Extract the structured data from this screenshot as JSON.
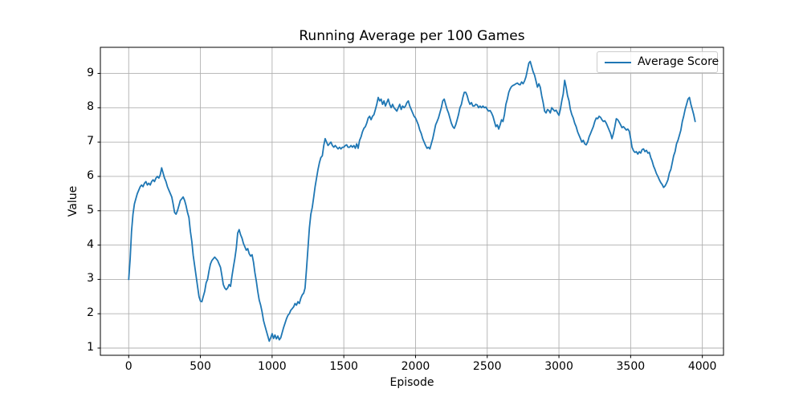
{
  "figure": {
    "background": "#ffffff",
    "axes_edge_color": "#000000"
  },
  "chart_data": {
    "type": "line",
    "title": "Running Average per 100 Games",
    "xlabel": "Episode",
    "ylabel": "Value",
    "legend": {
      "label": "Average Score",
      "position": "upper right"
    },
    "grid": true,
    "grid_color": "#b0b0b0",
    "x_ticks": [
      0,
      500,
      1000,
      1500,
      2000,
      2500,
      3000,
      3500,
      4000
    ],
    "y_ticks": [
      1,
      2,
      3,
      4,
      5,
      6,
      7,
      8,
      9
    ],
    "xlim": [
      -197.5,
      4147.5
    ],
    "ylim": [
      0.79,
      9.76
    ],
    "series": [
      {
        "name": "Average Score",
        "color": "#1f77b4",
        "x_start": 0,
        "x_step": 10,
        "values": [
          3.0,
          3.6,
          4.4,
          4.9,
          5.2,
          5.35,
          5.5,
          5.6,
          5.7,
          5.75,
          5.7,
          5.8,
          5.85,
          5.75,
          5.8,
          5.75,
          5.85,
          5.9,
          5.85,
          5.95,
          6.0,
          5.95,
          6.05,
          6.25,
          6.1,
          5.95,
          5.85,
          5.7,
          5.6,
          5.5,
          5.4,
          5.2,
          4.95,
          4.9,
          5.0,
          5.15,
          5.3,
          5.35,
          5.4,
          5.3,
          5.15,
          4.95,
          4.8,
          4.4,
          4.1,
          3.7,
          3.4,
          3.1,
          2.8,
          2.5,
          2.37,
          2.35,
          2.5,
          2.65,
          2.9,
          3.0,
          3.25,
          3.45,
          3.55,
          3.6,
          3.65,
          3.6,
          3.55,
          3.45,
          3.35,
          3.1,
          2.85,
          2.75,
          2.7,
          2.75,
          2.85,
          2.8,
          3.1,
          3.35,
          3.6,
          3.9,
          4.35,
          4.45,
          4.3,
          4.2,
          4.05,
          3.95,
          3.85,
          3.9,
          3.75,
          3.68,
          3.72,
          3.5,
          3.2,
          2.95,
          2.65,
          2.4,
          2.25,
          2.05,
          1.8,
          1.65,
          1.5,
          1.35,
          1.2,
          1.3,
          1.42,
          1.28,
          1.38,
          1.27,
          1.35,
          1.24,
          1.3,
          1.45,
          1.6,
          1.72,
          1.85,
          1.95,
          2.0,
          2.1,
          2.15,
          2.2,
          2.3,
          2.25,
          2.35,
          2.3,
          2.45,
          2.55,
          2.6,
          2.75,
          3.3,
          3.9,
          4.5,
          4.9,
          5.1,
          5.4,
          5.7,
          5.95,
          6.2,
          6.4,
          6.55,
          6.6,
          6.9,
          7.1,
          7.0,
          6.9,
          6.95,
          7.0,
          6.9,
          6.85,
          6.9,
          6.85,
          6.8,
          6.85,
          6.8,
          6.85,
          6.85,
          6.9,
          6.92,
          6.85,
          6.85,
          6.9,
          6.85,
          6.9,
          6.82,
          6.95,
          6.82,
          7.05,
          7.15,
          7.3,
          7.4,
          7.45,
          7.55,
          7.7,
          7.75,
          7.65,
          7.75,
          7.8,
          7.95,
          8.1,
          8.3,
          8.2,
          8.25,
          8.1,
          8.2,
          8.05,
          8.15,
          8.25,
          8.1,
          8.0,
          8.1,
          8.0,
          7.95,
          7.9,
          8.0,
          8.1,
          7.95,
          8.05,
          8.0,
          8.05,
          8.15,
          8.2,
          8.05,
          7.95,
          7.85,
          7.75,
          7.7,
          7.6,
          7.5,
          7.35,
          7.25,
          7.1,
          7.0,
          6.9,
          6.82,
          6.85,
          6.8,
          6.95,
          7.1,
          7.3,
          7.5,
          7.6,
          7.7,
          7.85,
          8.0,
          8.2,
          8.25,
          8.1,
          7.95,
          7.85,
          7.7,
          7.55,
          7.45,
          7.4,
          7.5,
          7.65,
          7.8,
          8.0,
          8.1,
          8.3,
          8.45,
          8.45,
          8.35,
          8.2,
          8.1,
          8.15,
          8.05,
          8.05,
          8.1,
          8.08,
          8.0,
          8.05,
          8.0,
          8.05,
          8.0,
          8.02,
          7.95,
          7.9,
          7.92,
          7.85,
          7.75,
          7.6,
          7.45,
          7.5,
          7.38,
          7.5,
          7.65,
          7.6,
          7.8,
          8.1,
          8.25,
          8.45,
          8.55,
          8.62,
          8.65,
          8.67,
          8.7,
          8.72,
          8.68,
          8.67,
          8.75,
          8.7,
          8.78,
          8.9,
          9.1,
          9.3,
          9.35,
          9.2,
          9.05,
          8.95,
          8.78,
          8.6,
          8.7,
          8.6,
          8.35,
          8.15,
          7.9,
          7.85,
          7.95,
          7.92,
          7.85,
          8.0,
          7.95,
          7.9,
          7.93,
          7.85,
          7.78,
          7.95,
          8.2,
          8.4,
          8.8,
          8.6,
          8.35,
          8.2,
          7.95,
          7.8,
          7.7,
          7.55,
          7.45,
          7.3,
          7.2,
          7.1,
          7.0,
          7.05,
          6.95,
          6.92,
          7.0,
          7.15,
          7.25,
          7.35,
          7.45,
          7.6,
          7.7,
          7.68,
          7.75,
          7.72,
          7.65,
          7.6,
          7.62,
          7.55,
          7.45,
          7.35,
          7.25,
          7.1,
          7.25,
          7.45,
          7.68,
          7.65,
          7.58,
          7.5,
          7.42,
          7.45,
          7.4,
          7.35,
          7.38,
          7.32,
          7.1,
          6.85,
          6.75,
          6.7,
          6.72,
          6.65,
          6.72,
          6.68,
          6.78,
          6.8,
          6.72,
          6.76,
          6.68,
          6.7,
          6.55,
          6.45,
          6.3,
          6.2,
          6.08,
          6.0,
          5.9,
          5.82,
          5.76,
          5.68,
          5.72,
          5.8,
          5.9,
          6.1,
          6.2,
          6.4,
          6.6,
          6.72,
          6.95,
          7.05,
          7.2,
          7.35,
          7.6,
          7.75,
          7.95,
          8.1,
          8.25,
          8.3,
          8.1,
          7.95,
          7.8,
          7.6
        ]
      }
    ]
  }
}
